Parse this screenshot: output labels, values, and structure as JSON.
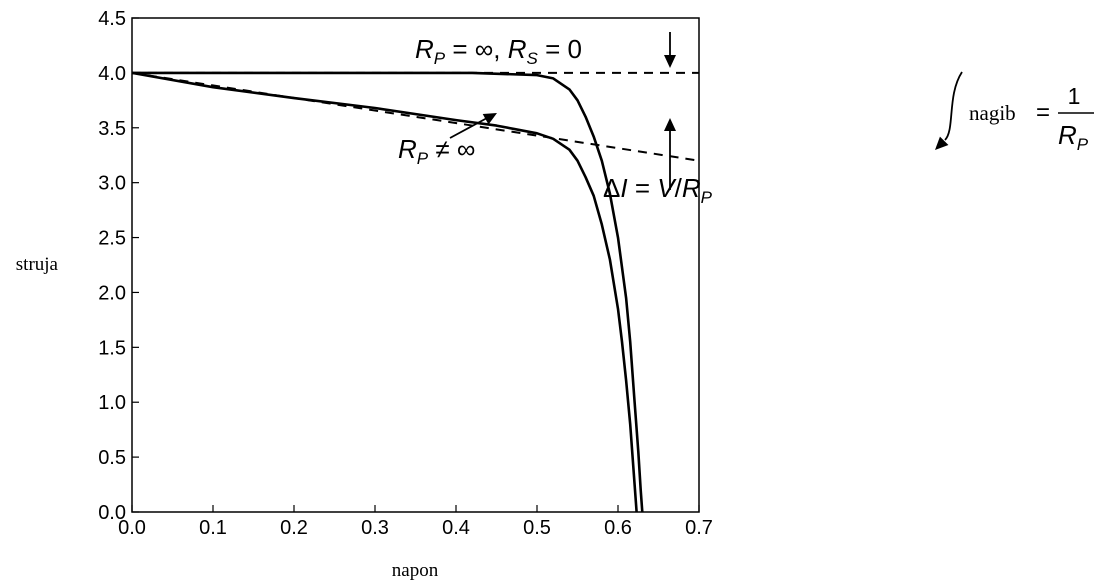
{
  "chart_data": {
    "type": "line",
    "xlabel": "napon",
    "ylabel": "struja",
    "xlim": [
      0.0,
      0.7
    ],
    "ylim": [
      0.0,
      4.5
    ],
    "xticks": [
      "0.0",
      "0.1",
      "0.2",
      "0.3",
      "0.4",
      "0.5",
      "0.6",
      "0.7"
    ],
    "yticks": [
      "0.0",
      "0.5",
      "1.0",
      "1.5",
      "2.0",
      "2.5",
      "3.0",
      "3.5",
      "4.0",
      "4.5"
    ],
    "grid": false,
    "series": [
      {
        "style": "solid",
        "x": [
          0.0,
          0.42,
          0.5,
          0.52,
          0.54,
          0.55,
          0.56,
          0.57,
          0.58,
          0.59,
          0.6,
          0.61,
          0.615,
          0.62,
          0.625,
          0.628,
          0.63
        ],
        "y": [
          4.0,
          4.0,
          3.98,
          3.95,
          3.85,
          3.75,
          3.6,
          3.42,
          3.2,
          2.9,
          2.5,
          1.95,
          1.55,
          1.05,
          0.55,
          0.2,
          0.0
        ]
      },
      {
        "style": "solid",
        "x": [
          0.0,
          0.1,
          0.2,
          0.3,
          0.4,
          0.45,
          0.5,
          0.52,
          0.54,
          0.55,
          0.56,
          0.57,
          0.58,
          0.59,
          0.6,
          0.605,
          0.61,
          0.615,
          0.618,
          0.621,
          0.623
        ],
        "y": [
          4.0,
          3.87,
          3.77,
          3.68,
          3.57,
          3.52,
          3.45,
          3.4,
          3.3,
          3.2,
          3.05,
          2.88,
          2.62,
          2.3,
          1.85,
          1.55,
          1.2,
          0.8,
          0.5,
          0.2,
          0.0
        ]
      },
      {
        "style": "dashed",
        "x": [
          0.0,
          0.7
        ],
        "y": [
          4.0,
          4.0
        ]
      },
      {
        "style": "dashed",
        "x": [
          0.0,
          0.7
        ],
        "y": [
          4.0,
          3.2
        ]
      }
    ],
    "annotations": {
      "ideal": {
        "r": "R",
        "sub_p": "P",
        "eq_inf": " = ∞, ",
        "r2": "R",
        "sub_s": "S",
        "eq_zero": " = 0"
      },
      "nonideal": {
        "r": "R",
        "sub_p": "P",
        "neq": " ≠ ∞"
      },
      "delta": {
        "prefix": "Δ",
        "i": "I",
        "eq": " = ",
        "v": "V",
        "slash": "/",
        "r": "R",
        "sub_p": "P"
      },
      "slope": {
        "word": "nagib",
        "eq": "=",
        "num": "1",
        "r": "R",
        "sub_p": "P"
      }
    }
  }
}
